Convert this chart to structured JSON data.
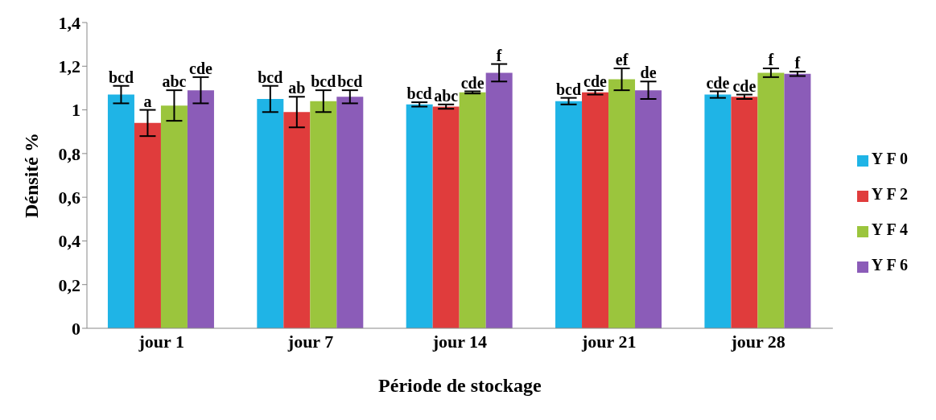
{
  "chart_data": {
    "type": "bar",
    "xlabel": "Période de stockage",
    "ylabel": "Dénsité %",
    "categories": [
      "jour 1",
      "jour 7",
      "jour 14",
      "jour 21",
      "jour 28"
    ],
    "series": [
      {
        "name": "Y F 0",
        "color": "#1fb4e6",
        "values": [
          1.07,
          1.05,
          1.025,
          1.04,
          1.07
        ],
        "errors": [
          0.04,
          0.06,
          0.01,
          0.015,
          0.015
        ],
        "value_labels": [
          "bcd",
          "bcd",
          "bcd",
          "bcd",
          "cde"
        ]
      },
      {
        "name": "Y F 2",
        "color": "#e03c3c",
        "values": [
          0.94,
          0.99,
          1.015,
          1.08,
          1.06
        ],
        "errors": [
          0.06,
          0.07,
          0.01,
          0.01,
          0.01
        ],
        "value_labels": [
          "a",
          "ab",
          "abc",
          "cde",
          "cde"
        ]
      },
      {
        "name": "Y F 4",
        "color": "#9bc53d",
        "values": [
          1.02,
          1.04,
          1.08,
          1.14,
          1.17
        ],
        "errors": [
          0.07,
          0.05,
          0.005,
          0.05,
          0.02
        ],
        "value_labels": [
          "abc",
          "bcd",
          "cde",
          "ef",
          "f"
        ]
      },
      {
        "name": "Y F 6",
        "color": "#8b5cb8",
        "values": [
          1.09,
          1.06,
          1.17,
          1.09,
          1.165
        ],
        "errors": [
          0.06,
          0.03,
          0.04,
          0.04,
          0.01
        ],
        "value_labels": [
          "cde",
          "bcd",
          "f",
          "de",
          "f"
        ]
      }
    ],
    "ylim": [
      0,
      1.4
    ],
    "yticks": [
      {
        "value": 0,
        "label": "0"
      },
      {
        "value": 0.2,
        "label": "0,2"
      },
      {
        "value": 0.4,
        "label": "0,4"
      },
      {
        "value": 0.6,
        "label": "0,6"
      },
      {
        "value": 0.8,
        "label": "0,8"
      },
      {
        "value": 1,
        "label": "1"
      },
      {
        "value": 1.2,
        "label": "1,2"
      },
      {
        "value": 1.4,
        "label": "1,4"
      }
    ],
    "grid": false,
    "legend": "right"
  }
}
